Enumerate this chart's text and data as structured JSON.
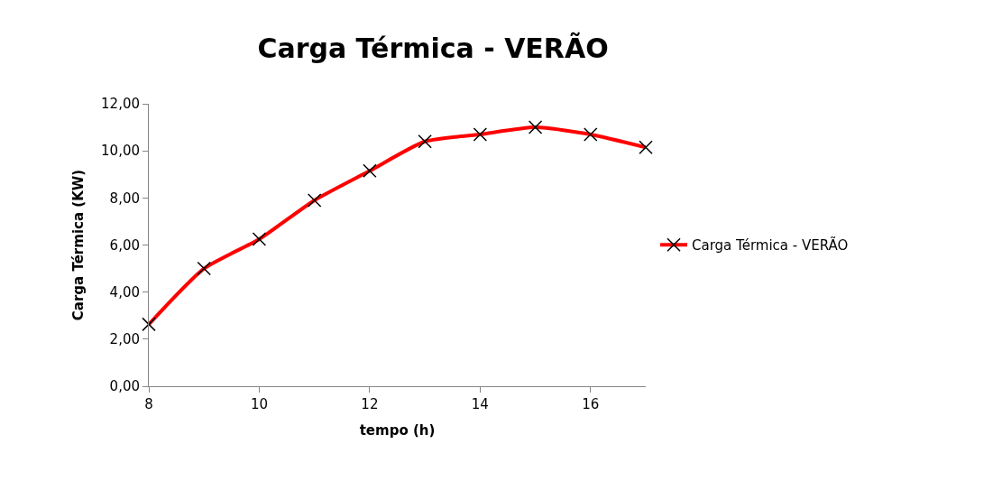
{
  "chart_data": {
    "type": "line",
    "title": "Carga Térmica - VERÃO",
    "xlabel": "tempo (h)",
    "ylabel": "Carga Térmica (KW)",
    "x": [
      8,
      9,
      10,
      11,
      12,
      13,
      14,
      15,
      16,
      17
    ],
    "series": [
      {
        "name": "Carga Térmica - VERÃO",
        "color": "#ff0000",
        "values": [
          2.63,
          5.0,
          6.25,
          7.9,
          9.15,
          10.4,
          10.7,
          11.0,
          10.7,
          10.15
        ]
      }
    ],
    "xlim": [
      8,
      17
    ],
    "xticks": [
      8,
      10,
      12,
      14,
      16
    ],
    "ylim": [
      0,
      12
    ],
    "yticks": [
      {
        "value": 0,
        "label": "0,00"
      },
      {
        "value": 2,
        "label": "2,00"
      },
      {
        "value": 4,
        "label": "4,00"
      },
      {
        "value": 6,
        "label": "6,00"
      },
      {
        "value": 8,
        "label": "8,00"
      },
      {
        "value": 10,
        "label": "10,00"
      },
      {
        "value": 12,
        "label": "12,00"
      }
    ],
    "legend": "right",
    "marker": "cross",
    "line_style": "solid"
  }
}
